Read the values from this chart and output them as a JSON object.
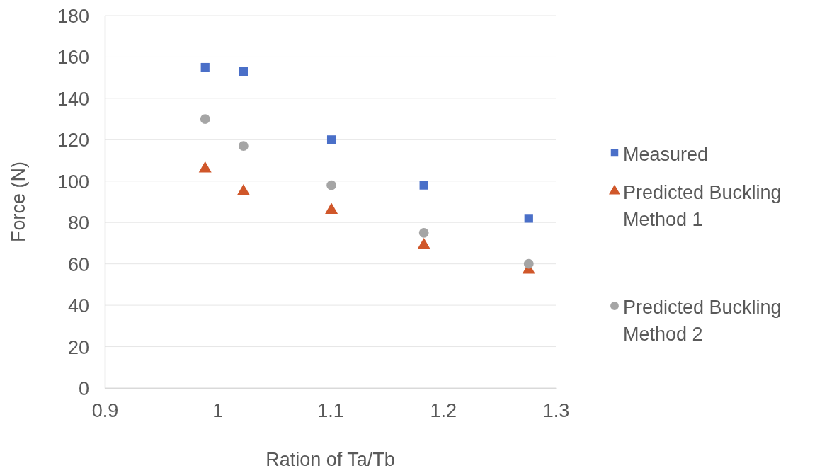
{
  "chart_data": {
    "type": "scatter",
    "xlabel": "Ration of Ta/Tb",
    "ylabel": "Force (N)",
    "x": [
      0.989,
      1.023,
      1.101,
      1.183,
      1.276
    ],
    "series": [
      {
        "name": "Measured",
        "color": "#4a6fc8",
        "marker": "square",
        "values": [
          155,
          153,
          120,
          98,
          82
        ]
      },
      {
        "name": "Predicted Buckling Method 1",
        "color": "#d0572a",
        "marker": "triangle",
        "values": [
          106,
          95,
          86,
          69,
          57
        ]
      },
      {
        "name": "Predicted Buckling Method 2",
        "color": "#a5a5a5",
        "marker": "circle",
        "values": [
          130,
          117,
          98,
          75,
          60
        ]
      }
    ],
    "xlim": [
      0.9,
      1.3
    ],
    "xticks": [
      0.9,
      1,
      1.1,
      1.2,
      1.3
    ],
    "ylim": [
      0,
      180
    ],
    "yticks": [
      0,
      20,
      40,
      60,
      80,
      100,
      120,
      140,
      160,
      180
    ],
    "grid": "y",
    "legend": "right"
  }
}
